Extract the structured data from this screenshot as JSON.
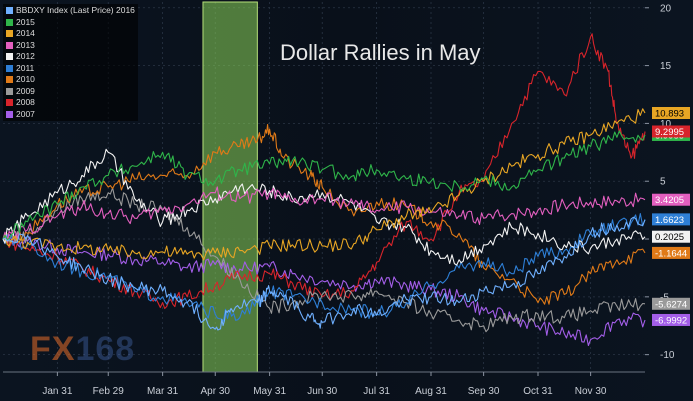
{
  "chart_data": {
    "type": "line",
    "title": "Dollar Rallies in May",
    "watermark": {
      "part1": "FX",
      "part2": "168"
    },
    "x_tick_labels": [
      "Jan 31",
      "Feb 29",
      "Mar 31",
      "Apr 30",
      "May 31",
      "Jun 30",
      "Jul 31",
      "Aug 31",
      "Sep 30",
      "Oct 31",
      "Nov 30"
    ],
    "x_ticks_day": [
      31,
      60,
      91,
      121,
      152,
      182,
      213,
      244,
      274,
      305,
      335
    ],
    "xlim": [
      0,
      366
    ],
    "y_ticks": [
      -10,
      -5,
      0,
      5,
      10,
      15,
      20
    ],
    "ylim": [
      -11.5,
      20.5
    ],
    "grid": true,
    "legend_placement": "top-left",
    "highlight": {
      "from_day": 114,
      "to_day": 145,
      "color": "#8bd35a"
    },
    "series": [
      {
        "name": "BBDXY Index (Last Price) 2016",
        "color": "#6fb0ff",
        "last_label": "",
        "x": [
          0,
          14,
          31,
          45,
          60,
          75,
          91,
          105,
          121,
          130,
          145,
          152,
          160,
          175,
          182,
          200,
          213,
          230,
          244,
          260,
          274,
          290,
          305,
          320,
          335,
          350,
          366
        ],
        "y": [
          0,
          0.3,
          -1.5,
          -2.5,
          -3.5,
          -4.2,
          -4.5,
          -5.5,
          -7.8,
          -6.0,
          -5.5,
          -4.5,
          -5.0,
          -6.8,
          -7.2,
          -6.0,
          -6.6,
          -5.2,
          -5.0,
          -5.5,
          -4.5,
          -4.0,
          -3.0,
          -1.5,
          0.5,
          1.2,
          1.66
        ]
      },
      {
        "name": "2015",
        "color": "#2fb54a",
        "last_label": "8.9985",
        "x": [
          0,
          14,
          31,
          45,
          60,
          75,
          91,
          105,
          121,
          135,
          152,
          165,
          182,
          200,
          213,
          230,
          244,
          260,
          274,
          290,
          305,
          320,
          335,
          350,
          366
        ],
        "y": [
          0,
          1.5,
          3.0,
          4.5,
          5.5,
          6.3,
          7.5,
          5.5,
          5.0,
          6.0,
          6.5,
          6.8,
          6.0,
          5.5,
          6.0,
          5.2,
          5.0,
          4.5,
          5.2,
          4.5,
          6.0,
          7.0,
          8.0,
          8.8,
          9.0
        ]
      },
      {
        "name": "2014",
        "color": "#e8a624",
        "last_label": "10.893",
        "x": [
          0,
          14,
          31,
          45,
          60,
          75,
          91,
          105,
          121,
          135,
          152,
          165,
          182,
          200,
          213,
          230,
          244,
          260,
          274,
          290,
          305,
          320,
          335,
          350,
          366
        ],
        "y": [
          0,
          -0.3,
          -0.6,
          -0.8,
          -1.0,
          -1.2,
          -1.1,
          -1.3,
          -1.2,
          -1.0,
          -0.6,
          -0.5,
          -0.6,
          -0.4,
          0.8,
          2.0,
          2.3,
          3.8,
          5.0,
          6.3,
          7.3,
          8.2,
          9.0,
          10.0,
          10.9
        ]
      },
      {
        "name": "2013",
        "color": "#e35fbf",
        "last_label": "3.4205",
        "x": [
          0,
          14,
          31,
          45,
          60,
          75,
          91,
          105,
          121,
          135,
          152,
          165,
          182,
          200,
          213,
          230,
          244,
          260,
          274,
          290,
          305,
          320,
          335,
          350,
          366
        ],
        "y": [
          0,
          0.8,
          2.0,
          2.8,
          2.2,
          1.8,
          2.5,
          3.0,
          4.0,
          3.5,
          4.0,
          3.2,
          3.5,
          3.0,
          2.5,
          2.8,
          2.3,
          2.0,
          1.8,
          2.2,
          2.5,
          3.0,
          3.2,
          3.3,
          3.4
        ]
      },
      {
        "name": "2012",
        "color": "#f2f2f2",
        "last_label": "0.2025",
        "x": [
          0,
          14,
          31,
          45,
          60,
          75,
          91,
          105,
          121,
          135,
          152,
          165,
          182,
          200,
          213,
          230,
          244,
          260,
          274,
          290,
          305,
          320,
          335,
          350,
          366
        ],
        "y": [
          0,
          2.0,
          4.0,
          5.5,
          7.5,
          3.5,
          1.5,
          2.5,
          3.5,
          4.5,
          4.2,
          3.5,
          4.0,
          3.0,
          1.5,
          1.0,
          -1.0,
          -1.8,
          -0.5,
          1.0,
          0.5,
          -0.5,
          -0.8,
          0.0,
          0.2
        ]
      },
      {
        "name": "2011",
        "color": "#2e7fd6",
        "last_label": "1.6623",
        "x": [
          0,
          14,
          31,
          45,
          60,
          75,
          91,
          105,
          121,
          135,
          152,
          165,
          182,
          200,
          213,
          230,
          244,
          260,
          274,
          290,
          305,
          320,
          335,
          350,
          366
        ],
        "y": [
          0,
          -0.5,
          -2.0,
          -2.8,
          -3.2,
          -4.5,
          -5.0,
          -5.5,
          -6.5,
          -6.8,
          -4.5,
          -5.0,
          -5.5,
          -6.0,
          -6.5,
          -5.5,
          -4.0,
          -2.5,
          -2.0,
          -3.0,
          -1.5,
          -1.0,
          0.5,
          1.2,
          1.7
        ]
      },
      {
        "name": "2010",
        "color": "#e07a18",
        "last_label": "-1.1644",
        "x": [
          0,
          14,
          31,
          45,
          60,
          75,
          91,
          105,
          121,
          135,
          145,
          152,
          160,
          175,
          182,
          200,
          213,
          230,
          244,
          260,
          274,
          290,
          305,
          320,
          335,
          350,
          366
        ],
        "y": [
          0,
          0.5,
          3.0,
          4.0,
          4.5,
          5.2,
          5.5,
          5.5,
          7.5,
          8.0,
          8.5,
          9.5,
          7.0,
          5.5,
          4.5,
          2.0,
          3.2,
          2.8,
          1.5,
          0.5,
          -2.5,
          -3.5,
          -5.5,
          -4.8,
          -3.0,
          -1.8,
          -1.2
        ]
      },
      {
        "name": "2009",
        "color": "#9a9a9a",
        "last_label": "-5.6274",
        "x": [
          0,
          14,
          31,
          45,
          60,
          75,
          91,
          105,
          121,
          135,
          152,
          165,
          182,
          200,
          213,
          230,
          244,
          260,
          274,
          290,
          305,
          320,
          335,
          350,
          366
        ],
        "y": [
          0,
          0.3,
          2.5,
          3.5,
          4.0,
          3.0,
          2.5,
          1.0,
          -1.5,
          -3.5,
          -6.0,
          -5.5,
          -4.8,
          -5.0,
          -4.5,
          -5.5,
          -6.5,
          -7.0,
          -7.5,
          -6.8,
          -6.5,
          -6.8,
          -6.2,
          -5.8,
          -5.6
        ]
      },
      {
        "name": "2008",
        "color": "#d7242b",
        "last_label": "9.2995",
        "x": [
          0,
          14,
          31,
          45,
          60,
          75,
          91,
          105,
          121,
          135,
          152,
          165,
          182,
          200,
          213,
          230,
          244,
          260,
          274,
          290,
          305,
          320,
          335,
          345,
          350,
          358,
          366
        ],
        "y": [
          0,
          -0.8,
          -1.5,
          -2.5,
          -3.5,
          -4.5,
          -5.5,
          -5.0,
          -4.0,
          -3.2,
          -3.0,
          -3.8,
          -5.0,
          -4.5,
          -2.0,
          1.5,
          0.0,
          4.0,
          5.0,
          10.0,
          14.5,
          12.5,
          17.5,
          14.5,
          10.0,
          7.0,
          9.3
        ]
      },
      {
        "name": "2007",
        "color": "#a35ee8",
        "last_label": "-6.9992",
        "x": [
          0,
          14,
          31,
          45,
          60,
          75,
          91,
          105,
          121,
          135,
          152,
          165,
          182,
          200,
          213,
          230,
          244,
          260,
          274,
          290,
          305,
          320,
          335,
          350,
          366
        ],
        "y": [
          0,
          -0.2,
          -0.8,
          -1.2,
          -1.3,
          -1.8,
          -2.0,
          -2.5,
          -2.2,
          -2.6,
          -2.4,
          -3.0,
          -3.6,
          -4.0,
          -3.6,
          -4.0,
          -4.4,
          -5.0,
          -6.2,
          -6.8,
          -7.5,
          -8.2,
          -8.7,
          -7.0,
          -7.0
        ]
      }
    ]
  }
}
